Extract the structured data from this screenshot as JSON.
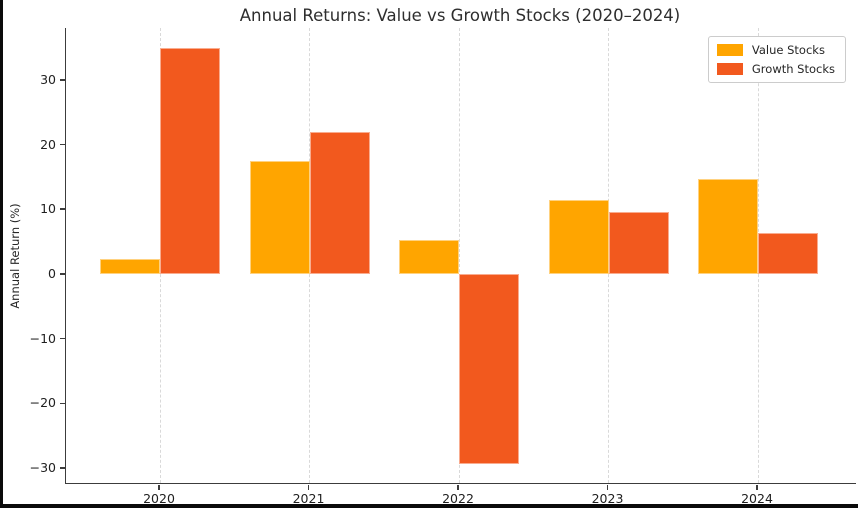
{
  "window": {
    "background_color": "#ffffff",
    "edge_border_color": "#0a0a0a"
  },
  "chart_data": {
    "type": "bar",
    "title": "Annual Returns: Value vs Growth Stocks (2020–2024)",
    "xlabel": "",
    "ylabel": "Annual Return (%)",
    "categories": [
      "2020",
      "2021",
      "2022",
      "2023",
      "2024"
    ],
    "series": [
      {
        "name": "Value Stocks",
        "color": "#FFA500",
        "values": [
          2.3,
          17.5,
          5.3,
          11.4,
          14.7
        ]
      },
      {
        "name": "Growth Stocks",
        "color": "#F2591E",
        "values": [
          34.9,
          22.0,
          -29.4,
          9.6,
          6.3
        ]
      }
    ],
    "yticks": [
      -30,
      -20,
      -10,
      0,
      10,
      20,
      30
    ],
    "ytick_labels": [
      "−30",
      "−20",
      "−10",
      "0",
      "10",
      "20",
      "30"
    ],
    "ylim": [
      -32.3,
      38.0
    ],
    "grid": {
      "vertical_dashed": true,
      "horizontal": false,
      "color": "#d9d9d9"
    },
    "legend": {
      "position": "top-right"
    },
    "axis": {
      "spine_color": "#3c3c3c",
      "hidden_spines": [
        "top",
        "right"
      ]
    }
  }
}
